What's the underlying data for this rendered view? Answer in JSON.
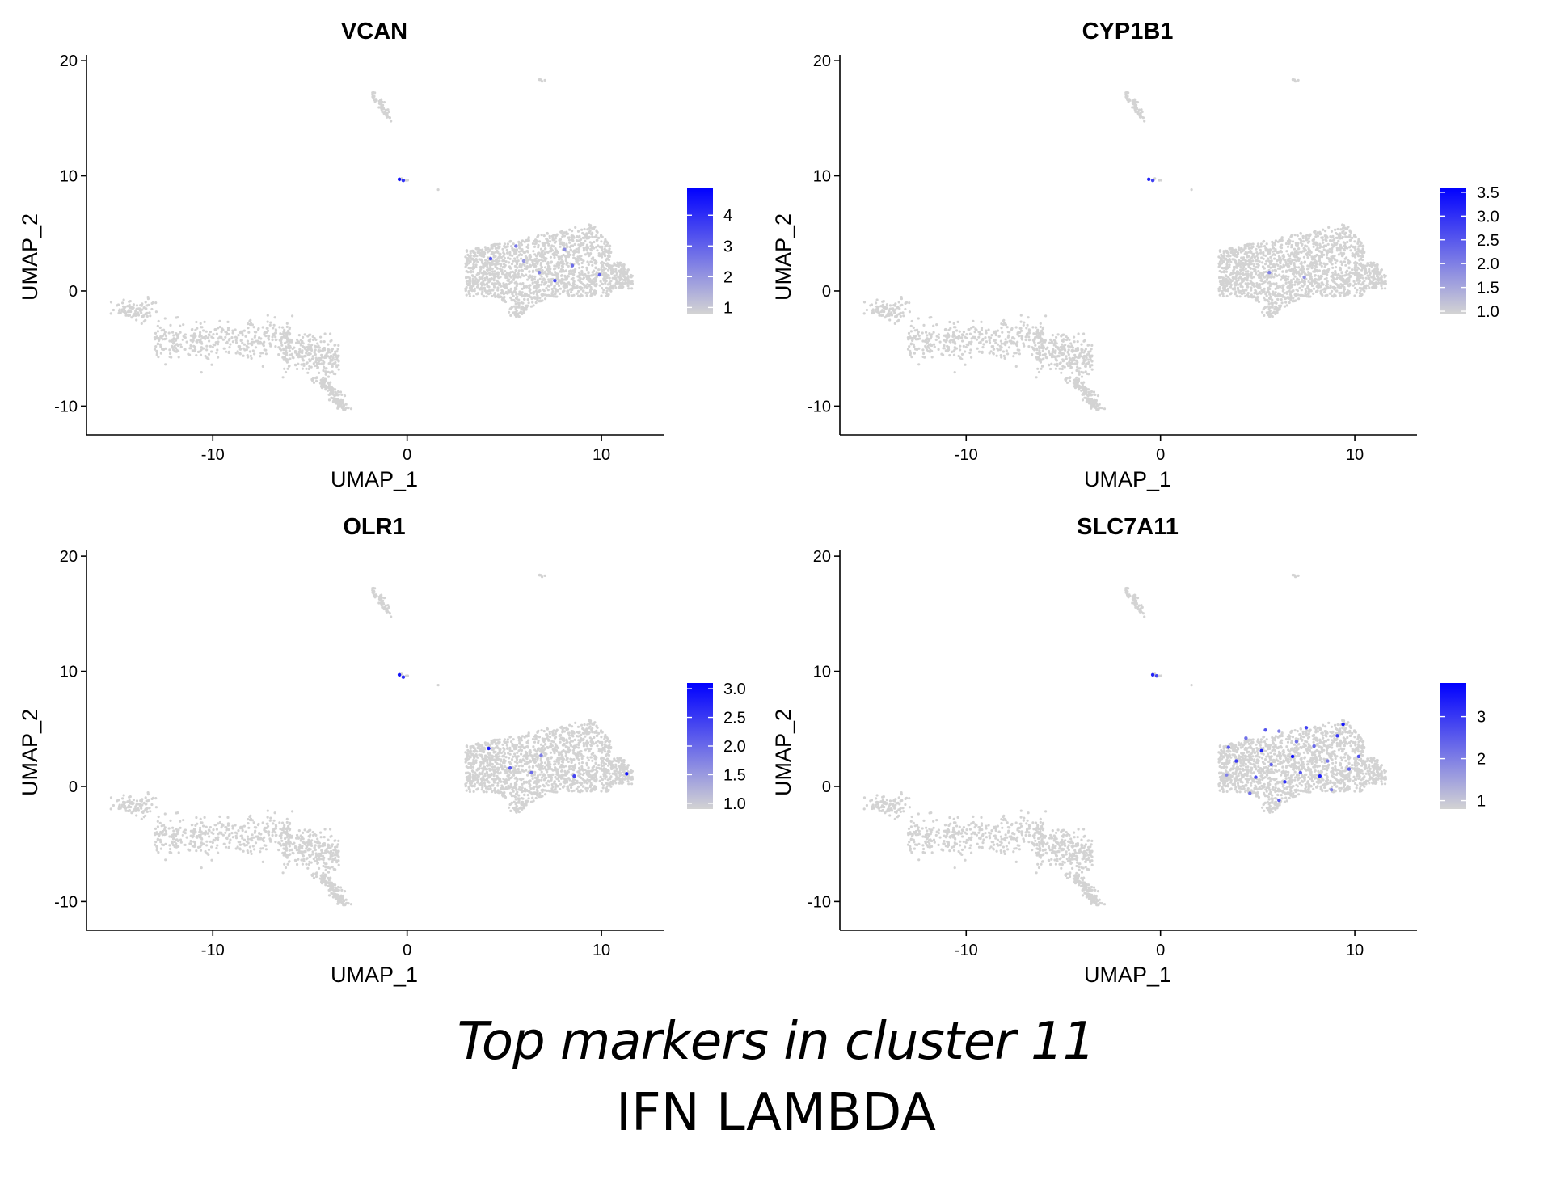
{
  "caption": {
    "line1": "Top markers in cluster 11",
    "line2": "IFN LAMBDA"
  },
  "colors": {
    "low": "#d3d3d3",
    "high": "#0000ff",
    "axis": "#000000"
  },
  "chart_data": [
    {
      "type": "scatter",
      "title": "VCAN",
      "xlabel": "UMAP_1",
      "ylabel": "UMAP_2",
      "xlim": [
        -16.5,
        13.2
      ],
      "ylim": [
        -12.5,
        20.5
      ],
      "xticks": [
        -10,
        0,
        10
      ],
      "yticks": [
        -10,
        0,
        10,
        20
      ],
      "legend": {
        "placement": "right",
        "ticks": [
          "1",
          "2",
          "3",
          "4"
        ],
        "tick_values": [
          1,
          2,
          3,
          4
        ],
        "min": 0.8,
        "max": 4.9
      },
      "highlight_points": [
        {
          "x": -0.4,
          "y": 9.7,
          "value": 4.6
        },
        {
          "x": -0.2,
          "y": 9.6,
          "value": 3.9
        },
        {
          "x": 4.3,
          "y": 2.8,
          "value": 3.2
        },
        {
          "x": 5.6,
          "y": 3.9,
          "value": 2.6
        },
        {
          "x": 6.8,
          "y": 1.6,
          "value": 2.4
        },
        {
          "x": 7.6,
          "y": 0.9,
          "value": 3.5
        },
        {
          "x": 8.5,
          "y": 2.2,
          "value": 2.8
        },
        {
          "x": 8.1,
          "y": 3.6,
          "value": 2.2
        },
        {
          "x": 9.9,
          "y": 1.4,
          "value": 3.0
        },
        {
          "x": 6.0,
          "y": 2.6,
          "value": 2.0
        }
      ]
    },
    {
      "type": "scatter",
      "title": "CYP1B1",
      "xlabel": "UMAP_1",
      "ylabel": "UMAP_2",
      "xlim": [
        -16.5,
        13.2
      ],
      "ylim": [
        -12.5,
        20.5
      ],
      "xticks": [
        -10,
        0,
        10
      ],
      "yticks": [
        -10,
        0,
        10,
        20
      ],
      "legend": {
        "placement": "right",
        "ticks": [
          "1.0",
          "1.5",
          "2.0",
          "2.5",
          "3.0",
          "3.5"
        ],
        "tick_values": [
          1.0,
          1.5,
          2.0,
          2.5,
          3.0,
          3.5
        ],
        "min": 0.95,
        "max": 3.6
      },
      "highlight_points": [
        {
          "x": -0.6,
          "y": 9.7,
          "value": 3.2
        },
        {
          "x": -0.4,
          "y": 9.6,
          "value": 2.8
        },
        {
          "x": 5.6,
          "y": 1.6,
          "value": 2.0
        },
        {
          "x": 7.4,
          "y": 1.2,
          "value": 1.8
        }
      ]
    },
    {
      "type": "scatter",
      "title": "OLR1",
      "xlabel": "UMAP_1",
      "ylabel": "UMAP_2",
      "xlim": [
        -16.5,
        13.2
      ],
      "ylim": [
        -12.5,
        20.5
      ],
      "xticks": [
        -10,
        0,
        10
      ],
      "yticks": [
        -10,
        0,
        10,
        20
      ],
      "legend": {
        "placement": "right",
        "ticks": [
          "1.0",
          "1.5",
          "2.0",
          "2.5",
          "3.0"
        ],
        "tick_values": [
          1.0,
          1.5,
          2.0,
          2.5,
          3.0
        ],
        "min": 0.9,
        "max": 3.1
      },
      "highlight_points": [
        {
          "x": -0.4,
          "y": 9.7,
          "value": 2.9
        },
        {
          "x": -0.2,
          "y": 9.5,
          "value": 2.6
        },
        {
          "x": 4.2,
          "y": 3.3,
          "value": 2.8
        },
        {
          "x": 5.3,
          "y": 1.6,
          "value": 2.2
        },
        {
          "x": 6.4,
          "y": 1.2,
          "value": 2.0
        },
        {
          "x": 8.6,
          "y": 0.9,
          "value": 2.4
        },
        {
          "x": 11.3,
          "y": 1.1,
          "value": 2.9
        },
        {
          "x": 6.9,
          "y": 2.7,
          "value": 1.8
        }
      ]
    },
    {
      "type": "scatter",
      "title": "SLC7A11",
      "xlabel": "UMAP_1",
      "ylabel": "UMAP_2",
      "xlim": [
        -16.5,
        13.2
      ],
      "ylim": [
        -12.5,
        20.5
      ],
      "xticks": [
        -10,
        0,
        10
      ],
      "yticks": [
        -10,
        0,
        10,
        20
      ],
      "legend": {
        "placement": "right",
        "ticks": [
          "1",
          "2",
          "3"
        ],
        "tick_values": [
          1,
          2,
          3
        ],
        "min": 0.8,
        "max": 3.8
      },
      "highlight_points": [
        {
          "x": -0.4,
          "y": 9.7,
          "value": 3.3
        },
        {
          "x": -0.2,
          "y": 9.6,
          "value": 2.8
        },
        {
          "x": 3.5,
          "y": 3.4,
          "value": 2.5
        },
        {
          "x": 3.9,
          "y": 2.2,
          "value": 3.0
        },
        {
          "x": 4.4,
          "y": 4.2,
          "value": 2.2
        },
        {
          "x": 4.9,
          "y": 0.8,
          "value": 2.7
        },
        {
          "x": 5.2,
          "y": 3.1,
          "value": 3.3
        },
        {
          "x": 5.7,
          "y": 1.9,
          "value": 2.4
        },
        {
          "x": 6.1,
          "y": 4.8,
          "value": 2.0
        },
        {
          "x": 6.4,
          "y": 0.4,
          "value": 3.1
        },
        {
          "x": 6.8,
          "y": 2.6,
          "value": 3.6
        },
        {
          "x": 7.2,
          "y": 1.2,
          "value": 2.6
        },
        {
          "x": 7.5,
          "y": 5.1,
          "value": 2.9
        },
        {
          "x": 7.9,
          "y": 3.5,
          "value": 2.3
        },
        {
          "x": 8.2,
          "y": 0.9,
          "value": 3.4
        },
        {
          "x": 8.6,
          "y": 2.2,
          "value": 2.1
        },
        {
          "x": 9.1,
          "y": 4.4,
          "value": 3.0
        },
        {
          "x": 9.4,
          "y": 5.4,
          "value": 3.5
        },
        {
          "x": 9.7,
          "y": 1.5,
          "value": 2.4
        },
        {
          "x": 10.2,
          "y": 2.6,
          "value": 2.7
        },
        {
          "x": 4.6,
          "y": -0.6,
          "value": 2.2
        },
        {
          "x": 6.1,
          "y": -1.2,
          "value": 2.5
        },
        {
          "x": 8.8,
          "y": -0.3,
          "value": 2.0
        },
        {
          "x": 5.4,
          "y": 4.9,
          "value": 2.6
        },
        {
          "x": 3.4,
          "y": 1.0,
          "value": 2.0
        },
        {
          "x": 7.0,
          "y": 3.9,
          "value": 2.2
        }
      ]
    }
  ]
}
